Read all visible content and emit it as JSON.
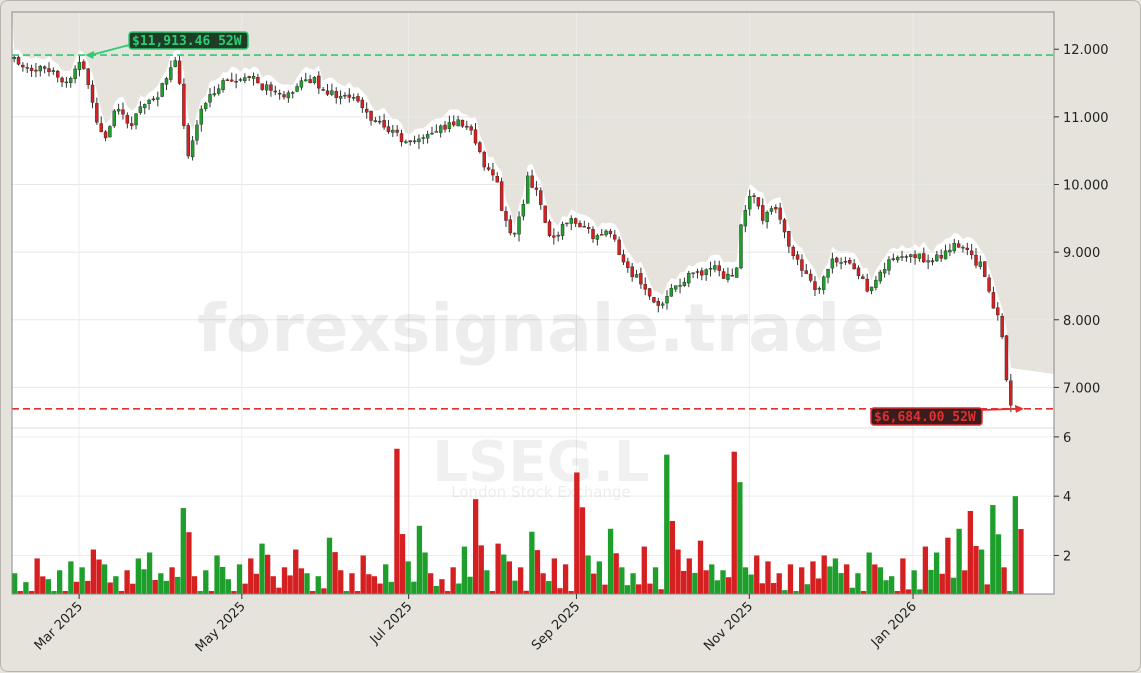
{
  "chart_data": {
    "type": "candlestick",
    "ticker": "LSEG.L",
    "exchange": "London Stock Exchange",
    "watermark": "forexsignale.trade",
    "price_axis": {
      "ticks": [
        "12.000",
        "11.000",
        "10.000",
        "9.000",
        "8.000",
        "7.000"
      ],
      "tick_values": [
        12000,
        11000,
        10000,
        9000,
        8000,
        7000
      ],
      "ylim": [
        6400,
        12550
      ]
    },
    "volume_axis": {
      "ticks": [
        "6",
        "4",
        "2"
      ],
      "tick_values": [
        6,
        4,
        2
      ],
      "ylim": [
        0.7,
        6.3
      ]
    },
    "x_axis": {
      "ticks": [
        "Mar 2025",
        "May 2025",
        "Jul 2025",
        "Sep 2025",
        "Nov 2025",
        "Jan 2026"
      ],
      "tick_positions": [
        0.066,
        0.226,
        0.39,
        0.555,
        0.725,
        0.886
      ]
    },
    "high_52w": {
      "value": 11913.46,
      "label": "$11,913.46 52W",
      "color": "#2ecc71"
    },
    "low_52w": {
      "value": 6684.0,
      "label": "$6,684.00 52W",
      "color": "#e03030"
    },
    "colors": {
      "up": "#1e9e2a",
      "down": "#d42020",
      "background": "#e6e3dd",
      "plot": "#ffffff"
    },
    "close_path": [
      [
        0,
        11850
      ],
      [
        0.02,
        11700
      ],
      [
        0.04,
        11720
      ],
      [
        0.05,
        11450
      ],
      [
        0.06,
        11700
      ],
      [
        0.066,
        11900
      ],
      [
        0.08,
        11000
      ],
      [
        0.09,
        10700
      ],
      [
        0.1,
        11100
      ],
      [
        0.115,
        10850
      ],
      [
        0.125,
        11200
      ],
      [
        0.14,
        11300
      ],
      [
        0.155,
        11700
      ],
      [
        0.16,
        11850
      ],
      [
        0.165,
        11200
      ],
      [
        0.17,
        10300
      ],
      [
        0.18,
        10900
      ],
      [
        0.19,
        11300
      ],
      [
        0.2,
        11450
      ],
      [
        0.21,
        11600
      ],
      [
        0.22,
        11500
      ],
      [
        0.235,
        11550
      ],
      [
        0.25,
        11400
      ],
      [
        0.265,
        11250
      ],
      [
        0.28,
        11500
      ],
      [
        0.295,
        11550
      ],
      [
        0.305,
        11400
      ],
      [
        0.32,
        11300
      ],
      [
        0.335,
        11250
      ],
      [
        0.35,
        11000
      ],
      [
        0.37,
        10800
      ],
      [
        0.385,
        10600
      ],
      [
        0.4,
        10700
      ],
      [
        0.415,
        10800
      ],
      [
        0.43,
        10900
      ],
      [
        0.445,
        10900
      ],
      [
        0.455,
        10600
      ],
      [
        0.465,
        10200
      ],
      [
        0.475,
        10000
      ],
      [
        0.48,
        9600
      ],
      [
        0.49,
        9200
      ],
      [
        0.5,
        9700
      ],
      [
        0.505,
        10100
      ],
      [
        0.515,
        9900
      ],
      [
        0.525,
        9200
      ],
      [
        0.535,
        9300
      ],
      [
        0.545,
        9500
      ],
      [
        0.56,
        9400
      ],
      [
        0.57,
        9200
      ],
      [
        0.58,
        9300
      ],
      [
        0.59,
        9200
      ],
      [
        0.6,
        8800
      ],
      [
        0.61,
        8650
      ],
      [
        0.62,
        8500
      ],
      [
        0.63,
        8200
      ],
      [
        0.64,
        8250
      ],
      [
        0.65,
        8500
      ],
      [
        0.665,
        8650
      ],
      [
        0.675,
        8700
      ],
      [
        0.69,
        8800
      ],
      [
        0.7,
        8600
      ],
      [
        0.71,
        8750
      ],
      [
        0.715,
        9500
      ],
      [
        0.725,
        9900
      ],
      [
        0.735,
        9500
      ],
      [
        0.745,
        9700
      ],
      [
        0.755,
        9400
      ],
      [
        0.765,
        9000
      ],
      [
        0.775,
        8700
      ],
      [
        0.785,
        8500
      ],
      [
        0.79,
        8400
      ],
      [
        0.8,
        8800
      ],
      [
        0.81,
        8900
      ],
      [
        0.82,
        8800
      ],
      [
        0.83,
        8700
      ],
      [
        0.84,
        8450
      ],
      [
        0.85,
        8650
      ],
      [
        0.86,
        8850
      ],
      [
        0.875,
        8900
      ],
      [
        0.89,
        8950
      ],
      [
        0.9,
        8850
      ],
      [
        0.91,
        8950
      ],
      [
        0.92,
        9050
      ],
      [
        0.93,
        9100
      ],
      [
        0.94,
        8950
      ],
      [
        0.95,
        8800
      ],
      [
        0.96,
        8300
      ],
      [
        0.965,
        8100
      ],
      [
        0.97,
        8050
      ],
      [
        0.975,
        7150
      ],
      [
        0.98,
        6750
      ]
    ],
    "volume_profile": [
      1.4,
      1.1,
      1.9,
      1.2,
      1.5,
      1.8,
      1.6,
      2.2,
      1.7,
      1.3,
      1.5,
      1.9,
      2.1,
      1.4,
      1.6,
      3.6,
      1.3,
      1.5,
      2.0,
      1.2,
      1.7,
      1.9,
      2.4,
      1.3,
      1.6,
      2.2,
      1.4,
      1.3,
      2.6,
      1.5,
      1.4,
      2.0,
      1.3,
      1.7,
      5.6,
      1.8,
      3.0,
      1.4,
      1.2,
      1.6,
      2.3,
      3.9,
      1.5,
      2.4,
      1.8,
      1.6,
      2.8,
      1.4,
      1.9,
      1.7,
      4.8,
      2.0,
      1.8,
      2.9,
      1.6,
      1.4,
      2.3,
      1.6,
      5.4,
      2.2,
      1.9,
      2.5,
      1.7,
      1.5,
      5.5,
      1.6,
      2.0,
      1.8,
      1.4,
      1.7,
      1.6,
      1.8,
      2.0,
      1.9,
      1.7,
      1.4,
      2.1,
      1.6,
      1.3,
      1.9,
      1.5,
      2.3,
      2.1,
      2.6,
      2.9,
      3.5,
      2.2,
      3.7,
      1.6,
      4.0
    ]
  }
}
